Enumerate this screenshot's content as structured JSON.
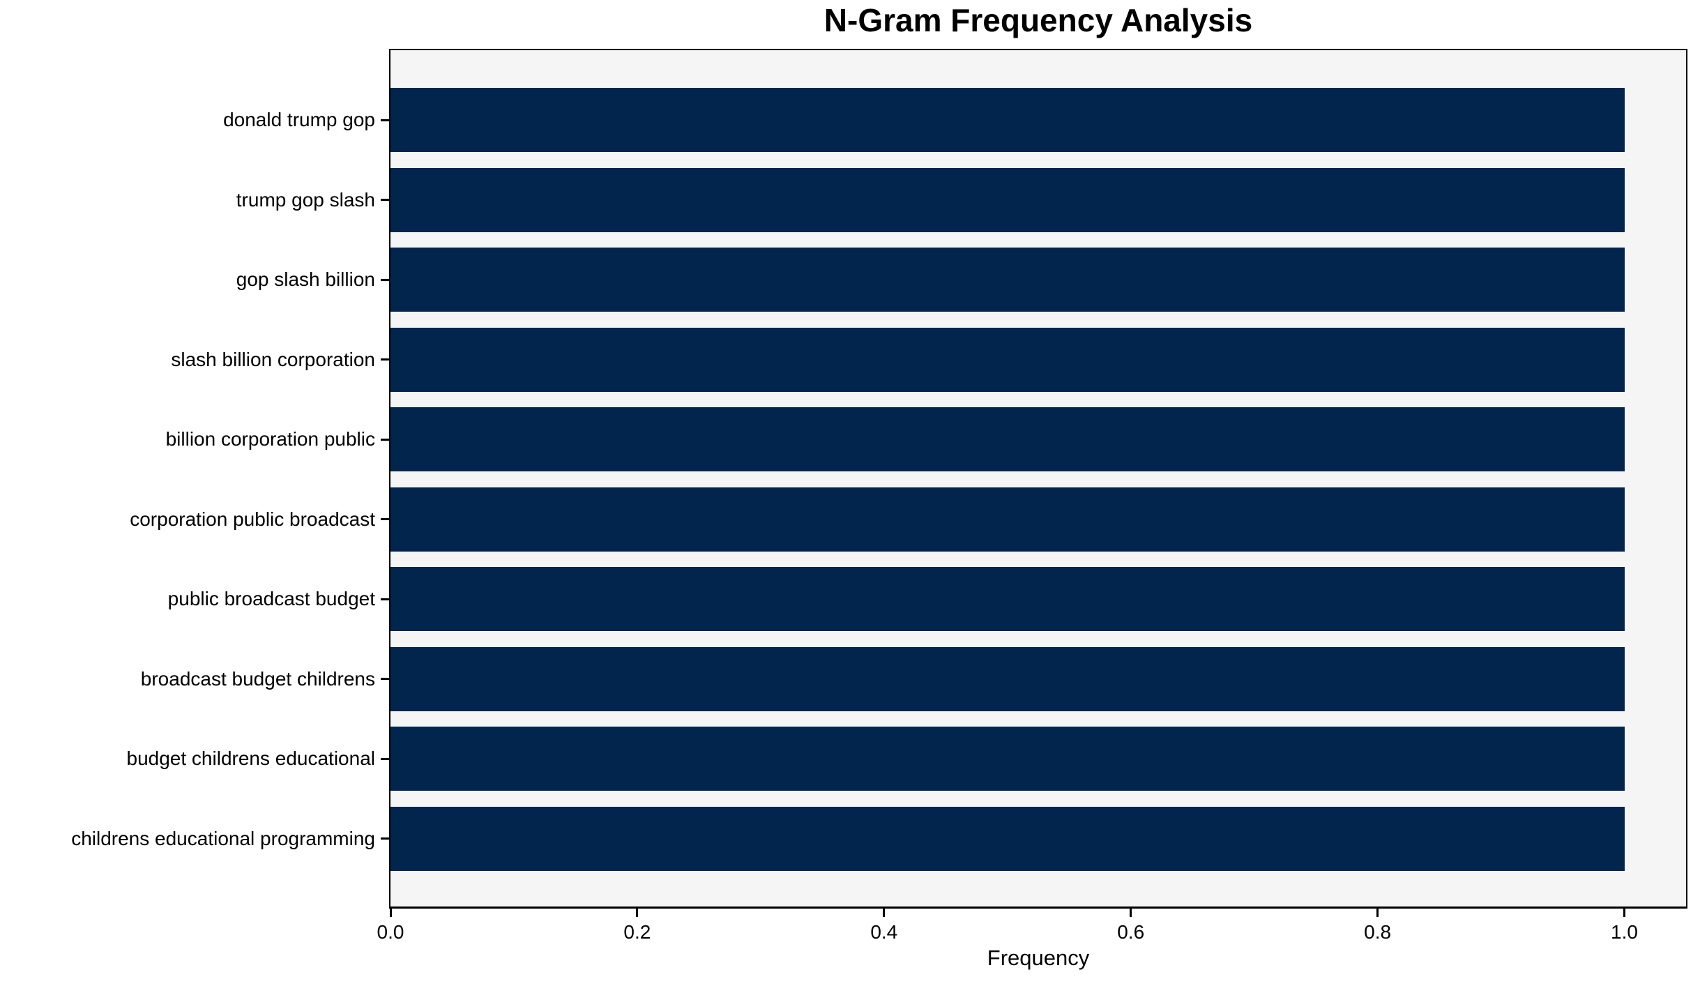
{
  "chart_data": {
    "type": "bar",
    "orientation": "horizontal",
    "title": "N-Gram Frequency Analysis",
    "xlabel": "Frequency",
    "ylabel": "",
    "categories": [
      "donald trump gop",
      "trump gop slash",
      "gop slash billion",
      "slash billion corporation",
      "billion corporation public",
      "corporation public broadcast",
      "public broadcast budget",
      "broadcast budget childrens",
      "budget childrens educational",
      "childrens educational programming"
    ],
    "values": [
      1.0,
      1.0,
      1.0,
      1.0,
      1.0,
      1.0,
      1.0,
      1.0,
      1.0,
      1.0
    ],
    "xlim": [
      0,
      1.05
    ],
    "x_ticks": [
      0.0,
      0.2,
      0.4,
      0.6,
      0.8,
      1.0
    ],
    "x_tick_labels": [
      "0.0",
      "0.2",
      "0.4",
      "0.6",
      "0.8",
      "1.0"
    ],
    "grid": false,
    "legend": null,
    "colors": {
      "bar": "#02254e",
      "plot_background": "#f5f5f6",
      "figure_background": "#ffffff",
      "axis": "#000000",
      "text": "#000000"
    }
  }
}
